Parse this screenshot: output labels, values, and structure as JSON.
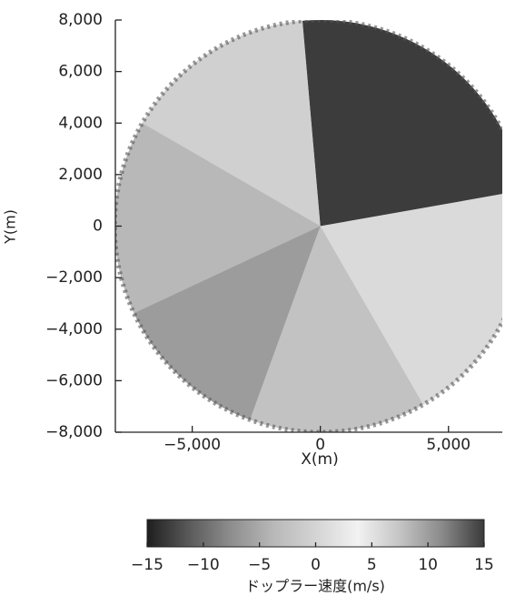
{
  "chart_data": {
    "type": "radar-scan",
    "xlabel": "X(m)",
    "ylabel": "Y(m)",
    "xlim": [
      -8000,
      7100
    ],
    "ylim": [
      -8000,
      8000
    ],
    "xticks": [
      {
        "value": -5000,
        "label": "−5,000"
      },
      0,
      {
        "value": 5000,
        "label": "5,000"
      }
    ],
    "yticks": [
      {
        "value": -8000,
        "label": "−8,000"
      },
      {
        "value": -6000,
        "label": "−6,000"
      },
      {
        "value": -4000,
        "label": "−4,000"
      },
      {
        "value": -2000,
        "label": "−2,000"
      },
      0,
      {
        "value": 2000,
        "label": "2,000"
      },
      {
        "value": 4000,
        "label": "4,000"
      },
      {
        "value": 6000,
        "label": "6,000"
      },
      {
        "value": 8000,
        "label": "8,000"
      }
    ],
    "colorbar": {
      "label": "ドップラー速度(m/s)",
      "clim": [
        -15,
        15
      ],
      "ticks": [
        {
          "value": -15,
          "label": "−15"
        },
        {
          "value": -10,
          "label": "−10"
        },
        {
          "value": -5,
          "label": "−5"
        },
        0,
        5,
        10,
        15
      ],
      "colors": [
        "#1e1e1e",
        "#5a5a5a",
        "#8e8e8e",
        "#b8b8b8",
        "#d4d4d4",
        "#f2f2f2",
        "#c4c4c4",
        "#8a8a8a",
        "#3a3a3a"
      ]
    }
  }
}
